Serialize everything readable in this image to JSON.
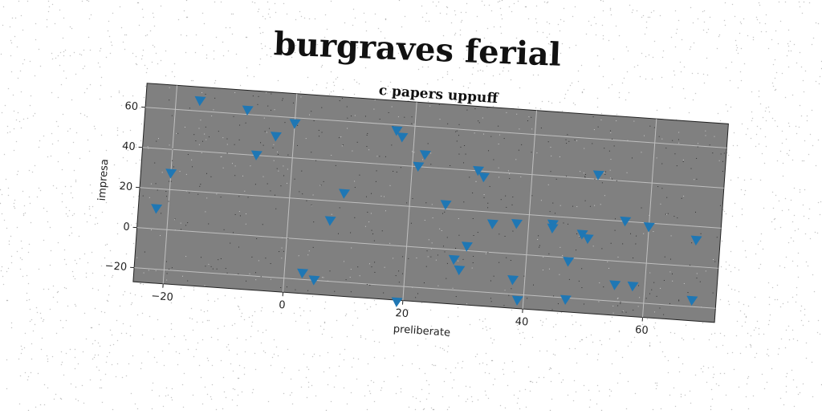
{
  "page_title": "burgraves ferial",
  "chart_data": {
    "type": "scatter",
    "title": "c papers uppuff",
    "xlabel": "preliberate",
    "ylabel": "impresa",
    "xlim": [
      -25,
      72
    ],
    "ylim": [
      -27,
      72
    ],
    "xticks": [
      -20,
      0,
      20,
      40,
      60
    ],
    "yticks": [
      -20,
      0,
      20,
      40,
      60
    ],
    "grid": true,
    "marker": "triangle-down",
    "colors": {
      "marker": "#1f77b4",
      "plot_bg": "#808080",
      "grid": "#bfbfbf"
    },
    "series": [
      {
        "x": [
          -22,
          -20,
          -16,
          -8,
          -6,
          -3,
          0,
          3,
          5,
          7,
          9,
          17,
          18,
          19,
          21,
          22,
          26,
          28,
          29,
          30,
          31,
          32,
          34,
          38,
          38,
          39,
          44,
          44,
          47,
          47,
          49,
          50,
          51,
          55,
          56,
          58,
          60,
          68,
          68
        ],
        "y": [
          10,
          28,
          65,
          62,
          40,
          50,
          57,
          -17,
          -20,
          10,
          24,
          57,
          54,
          -28,
          40,
          46,
          22,
          -5,
          -10,
          2,
          40,
          37,
          14,
          15,
          -13,
          -23,
          16,
          14,
          -2,
          -21,
          12,
          10,
          42,
          -12,
          20,
          -12,
          18,
          13,
          -17
        ]
      }
    ]
  }
}
